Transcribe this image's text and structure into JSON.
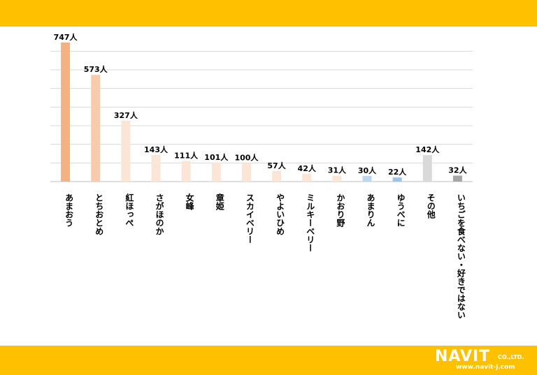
{
  "chart_data": {
    "type": "bar",
    "categories": [
      "あまおう",
      "とちおとめ",
      "紅ほっぺ",
      "さがほのか",
      "女峰",
      "章姫",
      "スカイベリー",
      "やよいひめ",
      "ミルキーベリー",
      "かおり野",
      "あまりん",
      "ゆうべに",
      "その他",
      "いちごを食べない・好きではない"
    ],
    "values": [
      747,
      573,
      327,
      143,
      111,
      101,
      100,
      57,
      42,
      31,
      30,
      22,
      142,
      32
    ],
    "value_labels": [
      "747人",
      "573人",
      "327人",
      "143人",
      "111人",
      "101人",
      "100人",
      "57人",
      "42人",
      "31人",
      "30人",
      "22人",
      "142人",
      "32人"
    ],
    "bar_colors": [
      "#F4B183",
      "#F8CBAD",
      "#FBE5D6",
      "#FBE5D6",
      "#FBE5D6",
      "#FBE5D6",
      "#FBE5D6",
      "#FBE5D6",
      "#FBE5D6",
      "#FBE5D6",
      "#BDD7EE",
      "#9DC3E6",
      "#D9D9D9",
      "#A6A6A6"
    ],
    "ylim": [
      0,
      750
    ],
    "gridlines": [
      0,
      100,
      200,
      300,
      400,
      500,
      600,
      700
    ],
    "grid": true,
    "legend": "none"
  },
  "colors": {
    "band": "#FFC000",
    "gridline": "#D9D9D9",
    "text": "#000000"
  },
  "logo": {
    "mark": "NAVIT",
    "company": "CO.,LTD.",
    "url": "www.navit-j.com"
  }
}
